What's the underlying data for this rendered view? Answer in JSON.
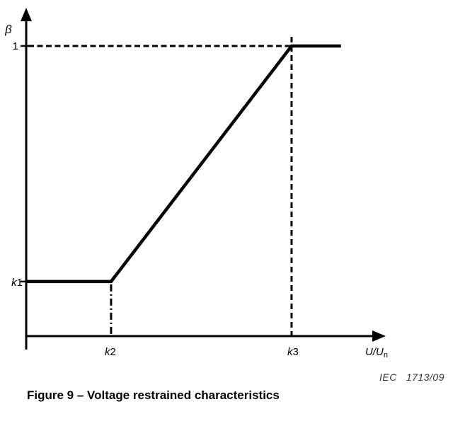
{
  "figure": {
    "caption": "Figure 9 – Voltage restrained characteristics",
    "credit": {
      "org": "IEC",
      "number": "1713/09"
    }
  },
  "labels": {
    "y_symbol": "β",
    "one": "1",
    "k1": {
      "i": "k",
      "n": "1"
    },
    "k2": {
      "i": "k",
      "n": "2"
    },
    "k3": {
      "i": "k",
      "n": "3"
    },
    "x_symbol": {
      "i": "U/U",
      "sub": "n"
    }
  },
  "chart_data": {
    "type": "line",
    "title": "Figure 9 – Voltage restrained characteristics",
    "xlabel": "U/Un",
    "ylabel": "β",
    "x_ticks": [
      "k2",
      "k3"
    ],
    "y_ticks": [
      "k1",
      "1"
    ],
    "series": [
      {
        "name": "voltage restrained characteristic",
        "points_symbolic": [
          [
            "0",
            "k1"
          ],
          [
            "k2",
            "k1"
          ],
          [
            "k3",
            "1"
          ],
          [
            "> k3",
            "1"
          ]
        ],
        "description": "β = k1 for U/Un ≤ k2; rises linearly from (k2, k1) to (k3, 1); β = 1 for U/Un ≥ k3"
      }
    ],
    "normalized_estimates": {
      "k1": 0.188,
      "k2": 0.237,
      "k3": 0.741,
      "curve_end": 0.879,
      "beta_max": 1
    },
    "guides": [
      {
        "style": "dashed",
        "desc": "horizontal guide at β = 1 from y-axis to k3"
      },
      {
        "style": "dashed",
        "desc": "vertical guide at U/Un = k3 from β = 1 down to x-axis"
      },
      {
        "style": "dash-dot",
        "desc": "vertical guide at U/Un = k2 from β = k1 down to x-axis"
      }
    ],
    "annotation": "IEC 1713/09",
    "grid": false,
    "legend": "none",
    "colors": {
      "line": "#000000",
      "background": "#ffffff",
      "credit_text": "#333333"
    }
  }
}
